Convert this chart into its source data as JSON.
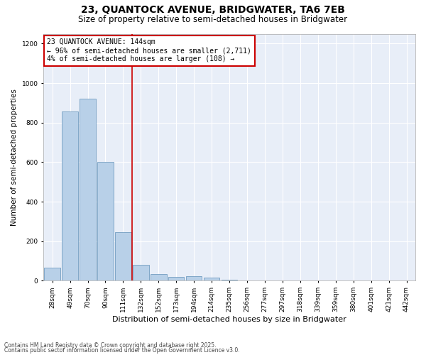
{
  "title1": "23, QUANTOCK AVENUE, BRIDGWATER, TA6 7EB",
  "title2": "Size of property relative to semi-detached houses in Bridgwater",
  "xlabel": "Distribution of semi-detached houses by size in Bridgwater",
  "ylabel": "Number of semi-detached properties",
  "categories": [
    "28sqm",
    "49sqm",
    "70sqm",
    "90sqm",
    "111sqm",
    "132sqm",
    "152sqm",
    "173sqm",
    "194sqm",
    "214sqm",
    "235sqm",
    "256sqm",
    "277sqm",
    "297sqm",
    "318sqm",
    "339sqm",
    "359sqm",
    "380sqm",
    "401sqm",
    "421sqm",
    "442sqm"
  ],
  "values": [
    65,
    855,
    920,
    600,
    245,
    80,
    35,
    20,
    22,
    15,
    5,
    2,
    1,
    0,
    0,
    0,
    0,
    0,
    0,
    0,
    0
  ],
  "bar_color": "#b8d0e8",
  "bar_edge_color": "#6090b8",
  "vline_bin_index": 5,
  "annotation_line1": "23 QUANTOCK AVENUE: 144sqm",
  "annotation_line2": "← 96% of semi-detached houses are smaller (2,711)",
  "annotation_line3": "4% of semi-detached houses are larger (108) →",
  "box_color": "#cc0000",
  "footer1": "Contains HM Land Registry data © Crown copyright and database right 2025.",
  "footer2": "Contains public sector information licensed under the Open Government Licence v3.0.",
  "ylim": [
    0,
    1250
  ],
  "yticks": [
    0,
    200,
    400,
    600,
    800,
    1000,
    1200
  ],
  "bg_color": "#e8eef8",
  "grid_color": "white",
  "title1_fontsize": 10,
  "title2_fontsize": 8.5,
  "ylabel_fontsize": 7.5,
  "xlabel_fontsize": 8,
  "tick_fontsize": 6.5,
  "ann_fontsize": 7,
  "footer_fontsize": 5.5
}
